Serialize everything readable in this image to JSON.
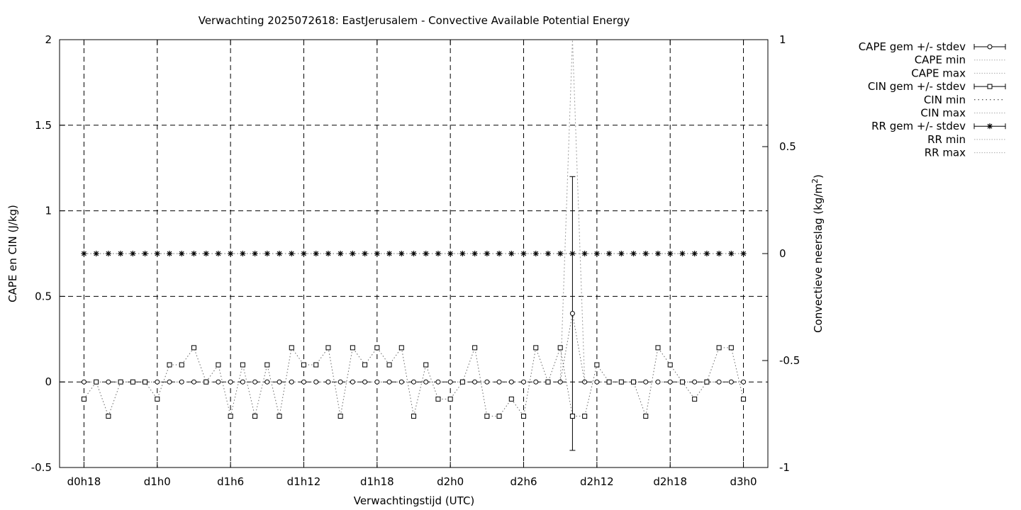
{
  "chart_data": {
    "type": "line",
    "title": "Verwachting 2025072618: EastJerusalem - Convective Available Potential Energy",
    "xlabel": "Verwachtingstijd (UTC)",
    "ylabel": "CAPE en CIN (J/kg)",
    "y2label": "Convectieve neerslag (kg/m²)",
    "y2label_main": "Convectieve neerslag (kg/m",
    "y2label_sup": "2",
    "y2label_close": ")",
    "ylim": [
      -0.5,
      2
    ],
    "y2lim": [
      -1,
      1
    ],
    "xlim": [
      -2,
      56
    ],
    "grid": true,
    "legend_position": "outside-right",
    "x_ticks": [
      {
        "x": 0,
        "label": "d0h18"
      },
      {
        "x": 6,
        "label": "d1h0"
      },
      {
        "x": 12,
        "label": "d1h6"
      },
      {
        "x": 18,
        "label": "d1h12"
      },
      {
        "x": 24,
        "label": "d1h18"
      },
      {
        "x": 30,
        "label": "d2h0"
      },
      {
        "x": 36,
        "label": "d2h6"
      },
      {
        "x": 42,
        "label": "d2h12"
      },
      {
        "x": 48,
        "label": "d2h18"
      },
      {
        "x": 54,
        "label": "d3h0"
      }
    ],
    "y_ticks": [
      {
        "v": -0.5,
        "label": "-0.5"
      },
      {
        "v": 0,
        "label": "0"
      },
      {
        "v": 0.5,
        "label": "0.5"
      },
      {
        "v": 1,
        "label": "1"
      },
      {
        "v": 1.5,
        "label": "1.5"
      },
      {
        "v": 2,
        "label": "2"
      }
    ],
    "y2_ticks": [
      {
        "v": -1,
        "label": "-1"
      },
      {
        "v": -0.5,
        "label": "-0.5"
      },
      {
        "v": 0,
        "label": "0"
      },
      {
        "v": 0.5,
        "label": "0.5"
      },
      {
        "v": 1,
        "label": "1"
      }
    ],
    "legend": [
      {
        "label": "CAPE gem +/- stdev",
        "style": "errbar-circle"
      },
      {
        "label": "CAPE min",
        "style": "dotted"
      },
      {
        "label": "CAPE max",
        "style": "dotted"
      },
      {
        "label": "CIN gem +/- stdev",
        "style": "errbar-square"
      },
      {
        "label": "CIN min",
        "style": "dotted-dark"
      },
      {
        "label": "CIN max",
        "style": "dotted"
      },
      {
        "label": "RR gem +/- stdev",
        "style": "errbar-star"
      },
      {
        "label": "RR min",
        "style": "dotted"
      },
      {
        "label": "RR max",
        "style": "dotted"
      }
    ],
    "series": [
      {
        "name": "CAPE gem +/- stdev",
        "axis": "y",
        "marker": "circle",
        "x": [
          0,
          1,
          2,
          3,
          4,
          5,
          6,
          7,
          8,
          9,
          10,
          11,
          12,
          13,
          14,
          15,
          16,
          17,
          18,
          19,
          20,
          21,
          22,
          23,
          24,
          25,
          26,
          27,
          28,
          29,
          30,
          31,
          32,
          33,
          34,
          35,
          36,
          37,
          38,
          39,
          40,
          41,
          42,
          43,
          44,
          45,
          46,
          47,
          48,
          49,
          50,
          51,
          52,
          53,
          54
        ],
        "y": [
          0,
          0,
          0,
          0,
          0,
          0,
          0,
          0,
          0,
          0,
          0,
          0,
          0,
          0,
          0,
          0,
          0,
          0,
          0,
          0,
          0,
          0,
          0,
          0,
          0,
          0,
          0,
          0,
          0,
          0,
          0,
          0,
          0,
          0,
          0,
          0,
          0,
          0,
          0,
          0,
          0.4,
          0,
          0,
          0,
          0,
          0,
          0,
          0,
          0,
          0,
          0,
          0,
          0,
          0,
          0
        ],
        "errbar": {
          "x": 40,
          "low": -0.4,
          "high": 1.2
        }
      },
      {
        "name": "CAPE max",
        "axis": "y",
        "marker": "none",
        "x": [
          39,
          40,
          41
        ],
        "y": [
          0,
          2,
          0
        ]
      },
      {
        "name": "CIN gem +/- stdev",
        "axis": "y",
        "marker": "square",
        "x": [
          0,
          1,
          2,
          3,
          4,
          5,
          6,
          7,
          8,
          9,
          10,
          11,
          12,
          13,
          14,
          15,
          16,
          17,
          18,
          19,
          20,
          21,
          22,
          23,
          24,
          25,
          26,
          27,
          28,
          29,
          30,
          31,
          32,
          33,
          34,
          35,
          36,
          37,
          38,
          39,
          40,
          41,
          42,
          43,
          44,
          45,
          46,
          47,
          48,
          49,
          50,
          51,
          52,
          53,
          54
        ],
        "y": [
          -0.1,
          0,
          -0.2,
          0,
          0,
          0,
          -0.1,
          0.1,
          0.1,
          0.2,
          0,
          0.1,
          -0.2,
          0.1,
          -0.2,
          0.1,
          -0.2,
          0.2,
          0.1,
          0.1,
          0.2,
          -0.2,
          0.2,
          0.1,
          0.2,
          0.1,
          0.2,
          -0.2,
          0.1,
          -0.1,
          -0.1,
          0,
          0.2,
          -0.2,
          -0.2,
          -0.1,
          -0.2,
          0.2,
          0,
          0.2,
          -0.2,
          -0.2,
          0.1,
          0,
          0,
          0,
          -0.2,
          0.2,
          0.1,
          0,
          -0.1,
          0,
          0.2,
          0.2,
          -0.1
        ]
      },
      {
        "name": "RR gem +/- stdev",
        "axis": "y2",
        "marker": "star",
        "x": [
          0,
          1,
          2,
          3,
          4,
          5,
          6,
          7,
          8,
          9,
          10,
          11,
          12,
          13,
          14,
          15,
          16,
          17,
          18,
          19,
          20,
          21,
          22,
          23,
          24,
          25,
          26,
          27,
          28,
          29,
          30,
          31,
          32,
          33,
          34,
          35,
          36,
          37,
          38,
          39,
          40,
          41,
          42,
          43,
          44,
          45,
          46,
          47,
          48,
          49,
          50,
          51,
          52,
          53,
          54
        ],
        "y": [
          0,
          0,
          0,
          0,
          0,
          0,
          0,
          0,
          0,
          0,
          0,
          0,
          0,
          0,
          0,
          0,
          0,
          0,
          0,
          0,
          0,
          0,
          0,
          0,
          0,
          0,
          0,
          0,
          0,
          0,
          0,
          0,
          0,
          0,
          0,
          0,
          0,
          0,
          0,
          0,
          0,
          0,
          0,
          0,
          0,
          0,
          0,
          0,
          0,
          0,
          0,
          0,
          0,
          0,
          0
        ]
      }
    ]
  }
}
